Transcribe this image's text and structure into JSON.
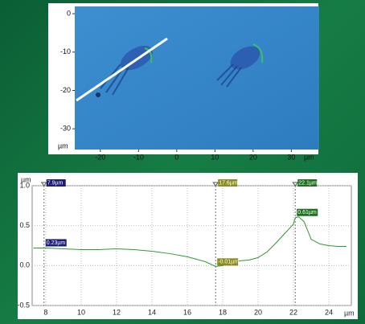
{
  "image_panel": {
    "x_label": "µm",
    "y_label": "µm",
    "xlim": [
      -26.7,
      37.3
    ],
    "ylim": [
      1.9,
      -35.4
    ],
    "xticks": [
      -20,
      -10,
      0,
      10,
      20,
      30
    ],
    "yticks": [
      0,
      -10,
      -20,
      -30
    ]
  },
  "chart_data": {
    "type": "line",
    "x_label": "µm",
    "y_label": "µm",
    "xlim": [
      7.23,
      25.27
    ],
    "ylim": [
      -0.5,
      1.0
    ],
    "xticks": [
      8,
      10,
      12,
      14,
      16,
      18,
      20,
      22,
      24
    ],
    "yticks": [
      {
        "value": -0.5,
        "label": "-0.5"
      },
      {
        "value": 0,
        "label": "0.0"
      },
      {
        "value": 0.5,
        "label": "0.5"
      },
      {
        "value": 1.0,
        "label": "1.0"
      }
    ],
    "grid": true,
    "series": [
      {
        "color": "#2e9a2e",
        "x": [
          7.3,
          8,
          9,
          10,
          11,
          12,
          13,
          14,
          15,
          16,
          16.5,
          17,
          17.6,
          18,
          18.5,
          19,
          19.5,
          20,
          20.5,
          21,
          21.5,
          22,
          22.1,
          22.3,
          22.6,
          23,
          23.5,
          24,
          24.5,
          25
        ],
        "values": [
          0.22,
          0.22,
          0.21,
          0.2,
          0.2,
          0.21,
          0.2,
          0.18,
          0.15,
          0.11,
          0.08,
          0.05,
          -0.01,
          0.0,
          0.04,
          0.06,
          0.07,
          0.1,
          0.17,
          0.28,
          0.4,
          0.52,
          0.6,
          0.61,
          0.55,
          0.33,
          0.27,
          0.25,
          0.24,
          0.24
        ]
      }
    ],
    "markers": [
      {
        "x": 7.9,
        "x_label": "7.9µm",
        "y": 0.23,
        "y_label": "0.23µm",
        "color": "#1c1c78"
      },
      {
        "x": 17.6,
        "x_label": "17.6µm",
        "y": -0.01,
        "y_label": "-0.01µm",
        "color": "#8c8c1e"
      },
      {
        "x": 22.1,
        "x_label": "22.1µm",
        "y": 0.61,
        "y_label": "0.61µm",
        "color": "#1e721e"
      }
    ]
  }
}
